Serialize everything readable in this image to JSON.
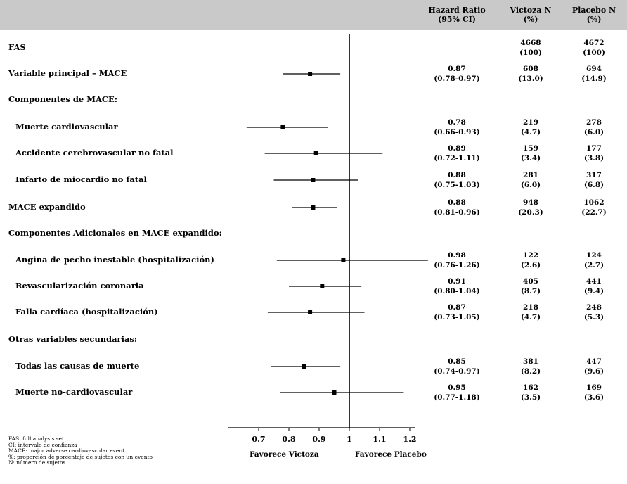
{
  "header": {
    "hr": "Hazard Ratio\n(95% CI)",
    "victoza": "Victoza N\n(%)",
    "placebo": "Placebo N\n(%)"
  },
  "chart_data": {
    "type": "forest",
    "xlim": [
      0.6,
      1.3
    ],
    "reference_line": 1,
    "x_ticks": [
      "0.7",
      "0.8",
      "0.9",
      "1",
      "1.1",
      "1.2"
    ],
    "favours_left": "Favorece Victoza",
    "favours_right": "Favorece Placebo",
    "rows": [
      {
        "label": "FAS",
        "indent": false,
        "hr": null,
        "lo": null,
        "hi": null,
        "hr_text": "",
        "ci_text": "",
        "vic_n": "4668",
        "vic_pct": "(100)",
        "pla_n": "4672",
        "pla_pct": "(100)"
      },
      {
        "label": "Variable principal – MACE",
        "indent": false,
        "hr": 0.87,
        "lo": 0.78,
        "hi": 0.97,
        "hr_text": "0.87",
        "ci_text": "(0.78-0.97)",
        "vic_n": "608",
        "vic_pct": "(13.0)",
        "pla_n": "694",
        "pla_pct": "(14.9)"
      },
      {
        "label": "Componentes de MACE:",
        "indent": false,
        "hr": null,
        "lo": null,
        "hi": null,
        "hr_text": "",
        "ci_text": "",
        "vic_n": "",
        "vic_pct": "",
        "pla_n": "",
        "pla_pct": ""
      },
      {
        "label": "Muerte cardiovascular",
        "indent": true,
        "hr": 0.78,
        "lo": 0.66,
        "hi": 0.93,
        "hr_text": "0.78",
        "ci_text": "(0.66-0.93)",
        "vic_n": "219",
        "vic_pct": "(4.7)",
        "pla_n": "278",
        "pla_pct": "(6.0)"
      },
      {
        "label": "Accidente cerebrovascular no fatal",
        "indent": true,
        "hr": 0.89,
        "lo": 0.72,
        "hi": 1.11,
        "hr_text": "0.89",
        "ci_text": "(0.72-1.11)",
        "vic_n": "159",
        "vic_pct": "(3.4)",
        "pla_n": "177",
        "pla_pct": "(3.8)"
      },
      {
        "label": "Infarto de miocardio no fatal",
        "indent": true,
        "hr": 0.88,
        "lo": 0.75,
        "hi": 1.03,
        "hr_text": "0.88",
        "ci_text": "(0.75-1.03)",
        "vic_n": "281",
        "vic_pct": "(6.0)",
        "pla_n": "317",
        "pla_pct": "(6.8)"
      },
      {
        "label": "MACE expandido",
        "indent": false,
        "hr": 0.88,
        "lo": 0.81,
        "hi": 0.96,
        "hr_text": "0.88",
        "ci_text": "(0.81-0.96)",
        "vic_n": "948",
        "vic_pct": "(20.3)",
        "pla_n": "1062",
        "pla_pct": "(22.7)"
      },
      {
        "label": "Componentes Adicionales en MACE expandido:",
        "indent": false,
        "hr": null,
        "lo": null,
        "hi": null,
        "hr_text": "",
        "ci_text": "",
        "vic_n": "",
        "vic_pct": "",
        "pla_n": "",
        "pla_pct": ""
      },
      {
        "label": "Angina de pecho inestable (hospitalización)",
        "indent": true,
        "hr": 0.98,
        "lo": 0.76,
        "hi": 1.26,
        "hr_text": "0.98",
        "ci_text": "(0.76-1.26)",
        "vic_n": "122",
        "vic_pct": "(2.6)",
        "pla_n": "124",
        "pla_pct": "(2.7)"
      },
      {
        "label": "Revascularización coronaria",
        "indent": true,
        "hr": 0.91,
        "lo": 0.8,
        "hi": 1.04,
        "hr_text": "0.91",
        "ci_text": "(0.80-1.04)",
        "vic_n": "405",
        "vic_pct": "(8.7)",
        "pla_n": "441",
        "pla_pct": "(9.4)"
      },
      {
        "label": "Falla cardíaca (hospitalización)",
        "indent": true,
        "hr": 0.87,
        "lo": 0.73,
        "hi": 1.05,
        "hr_text": "0.87",
        "ci_text": "(0.73-1.05)",
        "vic_n": "218",
        "vic_pct": "(4.7)",
        "pla_n": "248",
        "pla_pct": "(5.3)"
      },
      {
        "label": "Otras variables secundarias:",
        "indent": false,
        "hr": null,
        "lo": null,
        "hi": null,
        "hr_text": "",
        "ci_text": "",
        "vic_n": "",
        "vic_pct": "",
        "pla_n": "",
        "pla_pct": ""
      },
      {
        "label": "Todas las causas de muerte",
        "indent": true,
        "hr": 0.85,
        "lo": 0.74,
        "hi": 0.97,
        "hr_text": "0.85",
        "ci_text": "(0.74-0.97)",
        "vic_n": "381",
        "vic_pct": "(8.2)",
        "pla_n": "447",
        "pla_pct": "(9.6)"
      },
      {
        "label": "Muerte no-cardiovascular",
        "indent": true,
        "hr": 0.95,
        "lo": 0.77,
        "hi": 1.18,
        "hr_text": "0.95",
        "ci_text": "(0.77-1.18)",
        "vic_n": "162",
        "vic_pct": "(3.5)",
        "pla_n": "169",
        "pla_pct": "(3.6)"
      }
    ]
  },
  "footnotes": [
    "FAS: full analysis set",
    "CI: intervalo de confianza",
    "MACE: major adverse cardiovascular event",
    "%: proporción de porcentaje de sujetos con un evento",
    "N: número de sujetos"
  ]
}
